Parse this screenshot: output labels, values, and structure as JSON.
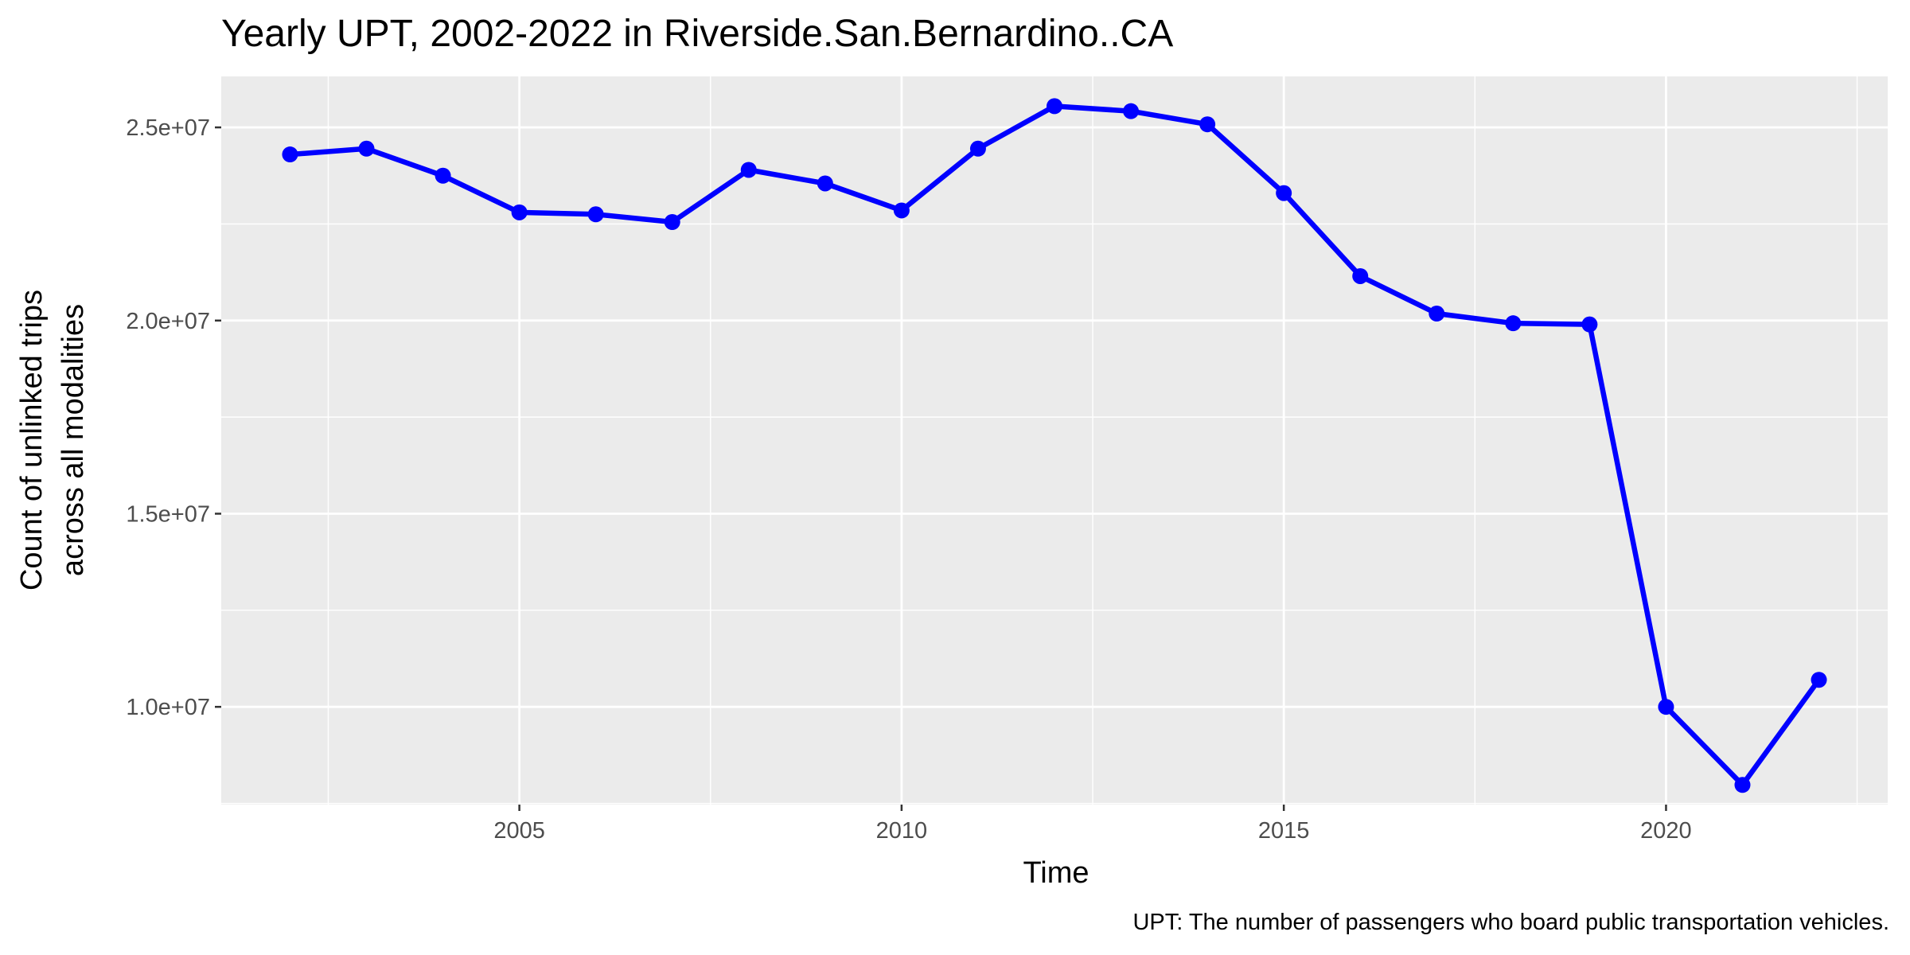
{
  "chart_data": {
    "type": "line",
    "title": "Yearly UPT, 2002-2022 in Riverside.San.Bernardino..CA",
    "xlabel": "Time",
    "ylabel_lines": [
      "Count of unlinked trips",
      "across all modalities"
    ],
    "caption": "UPT: The number of passengers who board public transportation vehicles.",
    "xlim": [
      2001.1,
      2022.9
    ],
    "ylim": [
      7470000,
      26320000
    ],
    "x_ticks": [
      2005,
      2010,
      2015,
      2020
    ],
    "x_tick_labels": [
      "2005",
      "2010",
      "2015",
      "2020"
    ],
    "x_minor_ticks": [
      2002.5,
      2007.5,
      2012.5,
      2017.5,
      2022.5
    ],
    "y_ticks": [
      10000000,
      15000000,
      20000000,
      25000000
    ],
    "y_tick_labels": [
      "1.0e+07",
      "1.5e+07",
      "2.0e+07",
      "2.5e+07"
    ],
    "y_minor_ticks": [
      7500000,
      12500000,
      17500000,
      22500000
    ],
    "grid": true,
    "panel_background": "#ebebeb",
    "line_color": "#0000ff",
    "series": [
      {
        "x": [
          2002,
          2003,
          2004,
          2005,
          2006,
          2007,
          2008,
          2009,
          2010,
          2011,
          2012,
          2013,
          2014,
          2015,
          2016,
          2017,
          2018,
          2019,
          2020,
          2021,
          2022
        ],
        "values": [
          24300000,
          24450000,
          23750000,
          22800000,
          22750000,
          22550000,
          23900000,
          23550000,
          22850000,
          24450000,
          25550000,
          25420000,
          25080000,
          23300000,
          21150000,
          20180000,
          19930000,
          19900000,
          10000000,
          7980000,
          10700000
        ]
      }
    ]
  }
}
